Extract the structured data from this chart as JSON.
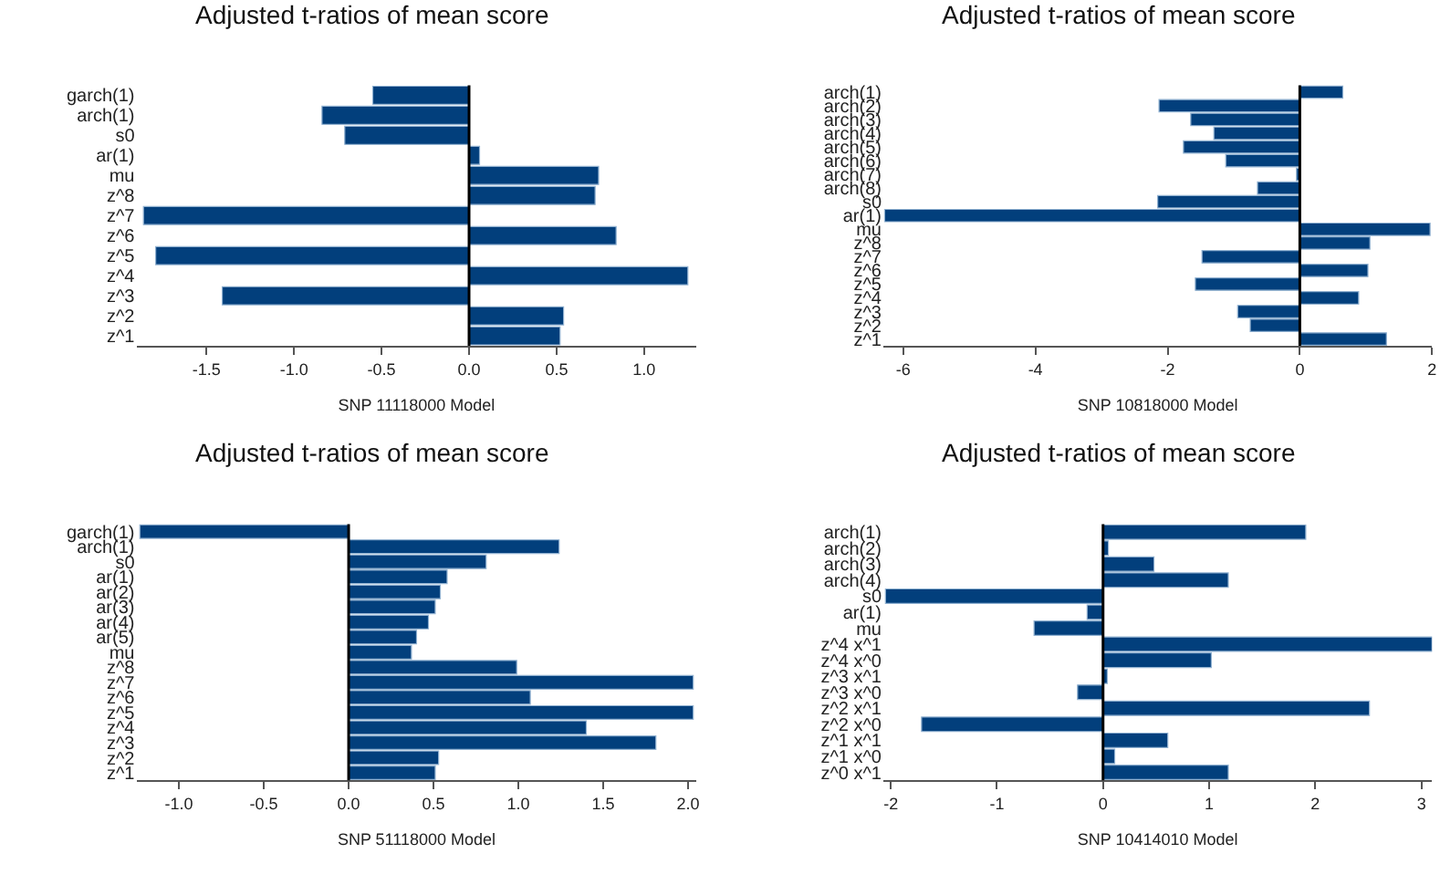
{
  "chart_data": [
    {
      "type": "bar",
      "orientation": "horizontal",
      "title": "Adjusted t-ratios of mean score",
      "xlabel": "SNP 11118000 Model",
      "categories": [
        "garch(1)",
        "arch(1)",
        "s0",
        "ar(1)",
        "mu",
        "z^8",
        "z^7",
        "z^6",
        "z^5",
        "z^4",
        "z^3",
        "z^2",
        "z^1"
      ],
      "values": [
        -0.55,
        -0.84,
        -0.71,
        0.06,
        0.74,
        0.72,
        -1.86,
        0.84,
        -1.79,
        1.25,
        -1.41,
        0.54,
        0.52
      ],
      "color": "#023f7c",
      "xlim": [
        -1.9,
        1.3
      ],
      "xticks": [
        -1.5,
        {
          "value": -1,
          "label": "-1.0"
        },
        -0.5,
        {
          "value": 0,
          "label": "0.0"
        },
        0.5,
        {
          "value": 1,
          "label": "1.0"
        }
      ],
      "ref_lines": [
        {
          "axis": "x",
          "value": 0,
          "color": "#000000"
        }
      ]
    },
    {
      "type": "bar",
      "orientation": "horizontal",
      "title": "Adjusted t-ratios of mean score",
      "xlabel": "SNP 10818000 Model",
      "categories": [
        "arch(1)",
        "arch(2)",
        "arch(3)",
        "arch(4)",
        "arch(5)",
        "arch(6)",
        "arch(7)",
        "arch(8)",
        "s0",
        "ar(1)",
        "mu",
        "z^8",
        "z^7",
        "z^6",
        "z^5",
        "z^4",
        "z^3",
        "z^2",
        "z^1"
      ],
      "values": [
        0.65,
        -2.13,
        -1.65,
        -1.3,
        -1.76,
        -1.12,
        -0.05,
        -0.64,
        -2.15,
        -6.28,
        1.97,
        1.06,
        -1.48,
        1.03,
        -1.58,
        0.89,
        -0.94,
        -0.75,
        1.31
      ],
      "color": "#023f7c",
      "xlim": [
        -6.3,
        2
      ],
      "xticks": [
        -6,
        -4,
        -2,
        0,
        2
      ],
      "ref_lines": [
        {
          "axis": "x",
          "value": 0,
          "color": "#000000"
        }
      ]
    },
    {
      "type": "bar",
      "orientation": "horizontal",
      "title": "Adjusted t-ratios of mean score",
      "xlabel": "SNP 51118000 Model",
      "categories": [
        "garch(1)",
        "arch(1)",
        "s0",
        "ar(1)",
        "ar(2)",
        "ar(3)",
        "ar(4)",
        "ar(5)",
        "mu",
        "z^8",
        "z^7",
        "z^6",
        "z^5",
        "z^4",
        "z^3",
        "z^2",
        "z^1"
      ],
      "values": [
        -1.23,
        1.24,
        0.81,
        0.58,
        0.54,
        0.51,
        0.47,
        0.4,
        0.37,
        0.99,
        2.03,
        1.07,
        2.03,
        1.4,
        1.81,
        0.53,
        0.51
      ],
      "color": "#023f7c",
      "xlim": [
        -1.25,
        2.05
      ],
      "xticks": [
        {
          "value": -1,
          "label": "-1.0"
        },
        -0.5,
        {
          "value": 0,
          "label": "0.0"
        },
        0.5,
        {
          "value": 1,
          "label": "1.0"
        },
        1.5,
        {
          "value": 2,
          "label": "2.0"
        }
      ],
      "ref_lines": [
        {
          "axis": "x",
          "value": 0,
          "color": "#000000"
        }
      ]
    },
    {
      "type": "bar",
      "orientation": "horizontal",
      "title": "Adjusted t-ratios of mean score",
      "xlabel": "SNP 10414010 Model",
      "categories": [
        "arch(1)",
        "arch(2)",
        "arch(3)",
        "arch(4)",
        "s0",
        "ar(1)",
        "mu",
        "z^4 x^1",
        "z^4 x^0",
        "z^3 x^1",
        "z^3 x^0",
        "z^2 x^1",
        "z^2 x^0",
        "z^1 x^1",
        "z^1 x^0",
        "z^0 x^1"
      ],
      "values": [
        1.91,
        0.05,
        0.48,
        1.18,
        -2.05,
        -0.15,
        -0.65,
        3.1,
        1.02,
        0.04,
        -0.24,
        2.51,
        -1.71,
        0.61,
        0.11,
        1.18
      ],
      "color": "#023f7c",
      "xlim": [
        -2.07,
        3.1
      ],
      "xticks": [
        -2,
        -1,
        0,
        1,
        2,
        3
      ],
      "ref_lines": [
        {
          "axis": "x",
          "value": 0,
          "color": "#000000"
        }
      ]
    }
  ]
}
